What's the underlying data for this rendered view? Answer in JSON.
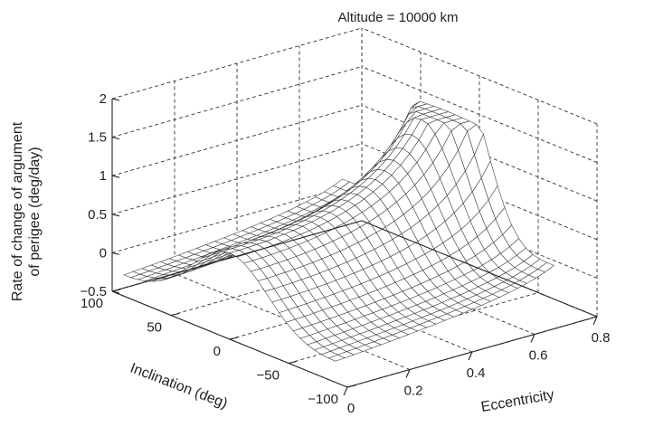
{
  "chart_data": {
    "type": "surface",
    "title": "Altitude = 10000 km",
    "xlabel": "Eccentricity",
    "ylabel": "Inclination (deg)",
    "zlabel": "Rate of change of argument of perigee (deg/day)",
    "zlabel_lines": [
      "Rate of change of argument",
      "of perigee (deg/day)"
    ],
    "xlim": [
      0,
      0.8
    ],
    "ylim": [
      -100,
      100
    ],
    "zlim": [
      -0.5,
      2
    ],
    "x_ticks": [
      0,
      0.2,
      0.4,
      0.6,
      0.8
    ],
    "x_tick_labels": [
      "0",
      "0.2",
      "0.4",
      "0.6",
      "0.8"
    ],
    "y_ticks": [
      100,
      50,
      0,
      -50,
      -100
    ],
    "y_tick_labels": [
      "100",
      "50",
      "0",
      "−50",
      "−100"
    ],
    "z_ticks": [
      2,
      1.5,
      1,
      0.5,
      0,
      -0.5
    ],
    "z_tick_labels": [
      "2",
      "1.5",
      "1",
      "0.5",
      "0",
      "−0.5"
    ],
    "grid": true,
    "surface": {
      "eccentricity_range": [
        0,
        0.7
      ],
      "inclination_range": [
        -90,
        90
      ],
      "peak_z": 1.65,
      "description_of_shape": "mesh"
    }
  }
}
